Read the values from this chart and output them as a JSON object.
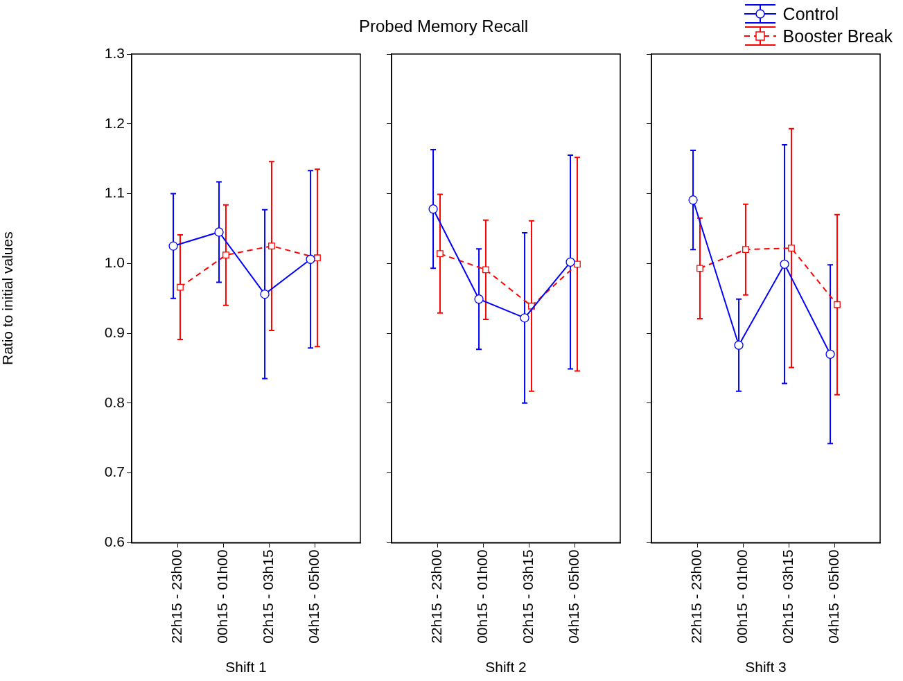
{
  "chart_data": [
    {
      "type": "line",
      "ylabel": "Ratio to initial values",
      "xlabel": "Shift 1",
      "legend": "top right",
      "categories": [
        "22h15 - 23h00",
        "00h15 - 01h00",
        "02h15 - 03h15",
        "04h15 - 05h00"
      ],
      "ylim": [
        0.6,
        1.3
      ],
      "yticks": [
        {
          "value": 0.6,
          "label": "0.6"
        },
        {
          "value": 0.7,
          "label": "0.7"
        },
        {
          "value": 0.8,
          "label": "0.8"
        },
        {
          "value": 0.9,
          "label": "0.9"
        },
        {
          "value": 1,
          "label": "1.0"
        },
        {
          "value": 1.1,
          "label": "1.1"
        },
        {
          "value": 1.2,
          "label": "1.2"
        },
        {
          "value": 1.3,
          "label": "1.3"
        }
      ],
      "grid": false,
      "series": [
        {
          "name": "Control",
          "color": "#0000ff",
          "marker": "circle",
          "line_style": "solid",
          "values": [
            1.025,
            1.045,
            0.956,
            1.006
          ],
          "errors": [
            0.075,
            0.072,
            0.121,
            0.127
          ]
        },
        {
          "name": "Booster Break",
          "color": "#ff0000",
          "marker": "square",
          "line_style": "dashed",
          "values": [
            0.966,
            1.012,
            1.025,
            1.008
          ],
          "errors": [
            0.075,
            0.072,
            0.121,
            0.127
          ]
        }
      ]
    },
    {
      "type": "line",
      "title": "Probed Memory Recall",
      "xlabel": "Shift 2",
      "categories": [
        "22h15 - 23h00",
        "00h15 - 01h00",
        "02h15 - 03h15",
        "04h15 - 05h00"
      ],
      "ylim": [
        0.6,
        1.3
      ],
      "yticks": [
        {
          "value": 0.6,
          "label": null
        },
        {
          "value": 0.7,
          "label": null
        },
        {
          "value": 0.8,
          "label": null
        },
        {
          "value": 0.9,
          "label": null
        },
        {
          "value": 1,
          "label": null
        },
        {
          "value": 1.1,
          "label": null
        },
        {
          "value": 1.2,
          "label": null
        },
        {
          "value": 1.3,
          "label": null
        }
      ],
      "grid": false,
      "tick_labels": "x",
      "series": [
        {
          "color": "#0000ff",
          "marker": "circle",
          "line_style": "solid",
          "values": [
            1.078,
            0.949,
            0.922,
            1.002
          ],
          "errors": [
            0.085,
            0.072,
            0.122,
            0.153
          ]
        },
        {
          "color": "#ff0000",
          "marker": "square",
          "line_style": "dashed",
          "values": [
            1.014,
            0.991,
            0.939,
            0.999
          ],
          "errors": [
            0.085,
            0.071,
            0.122,
            0.153
          ]
        }
      ]
    },
    {
      "type": "line",
      "xlabel": "Shift 3",
      "categories": [
        "22h15 - 23h00",
        "00h15 - 01h00",
        "02h15 - 03h15",
        "04h15 - 05h00"
      ],
      "ylim": [
        0.6,
        1.3
      ],
      "yticks": [
        {
          "value": 0.6,
          "label": null
        },
        {
          "value": 0.7,
          "label": null
        },
        {
          "value": 0.8,
          "label": null
        },
        {
          "value": 0.9,
          "label": null
        },
        {
          "value": 1,
          "label": null
        },
        {
          "value": 1.1,
          "label": null
        },
        {
          "value": 1.2,
          "label": null
        },
        {
          "value": 1.3,
          "label": null
        }
      ],
      "grid": false,
      "tick_labels": "x",
      "series": [
        {
          "color": "#0000ff",
          "marker": "circle",
          "line_style": "solid",
          "values": [
            1.091,
            0.883,
            0.999,
            0.87
          ],
          "errors": [
            0.071,
            0.066,
            0.171,
            0.128
          ]
        },
        {
          "color": "#ff0000",
          "marker": "square",
          "line_style": "dashed",
          "values": [
            0.993,
            1.02,
            1.022,
            0.941
          ],
          "errors": [
            0.072,
            0.065,
            0.171,
            0.129
          ]
        }
      ]
    }
  ]
}
